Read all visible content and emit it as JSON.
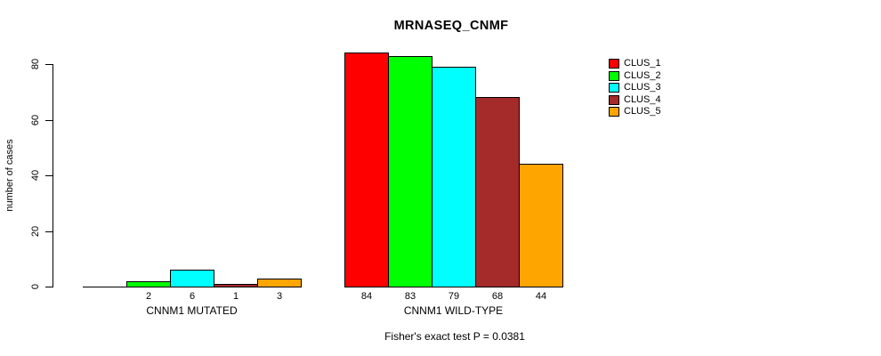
{
  "chart_data": {
    "type": "bar",
    "title": "MRNASEQ_CNMF",
    "xlabel": "",
    "ylabel": "number of cases",
    "ylim": [
      0,
      84
    ],
    "y_ticks": [
      0,
      20,
      40,
      60,
      80
    ],
    "grid": false,
    "legend_position": "right-outside",
    "categories": [
      "CNNM1 MUTATED",
      "CNNM1 WILD-TYPE"
    ],
    "series": [
      {
        "name": "CLUS_1",
        "color": "#FF0000",
        "values": [
          0,
          84
        ],
        "value_labels": [
          "",
          "84"
        ]
      },
      {
        "name": "CLUS_2",
        "color": "#00FF00",
        "values": [
          2,
          83
        ],
        "value_labels": [
          "2",
          "83"
        ]
      },
      {
        "name": "CLUS_3",
        "color": "#00FFFF",
        "values": [
          6,
          79
        ],
        "value_labels": [
          "6",
          "79"
        ]
      },
      {
        "name": "CLUS_4",
        "color": "#A52A2A",
        "values": [
          1,
          68
        ],
        "value_labels": [
          "1",
          "68"
        ]
      },
      {
        "name": "CLUS_5",
        "color": "#FFA500",
        "values": [
          3,
          44
        ],
        "value_labels": [
          "3",
          "44"
        ]
      }
    ],
    "annotation": "Fisher's exact test P = 0.0381"
  }
}
